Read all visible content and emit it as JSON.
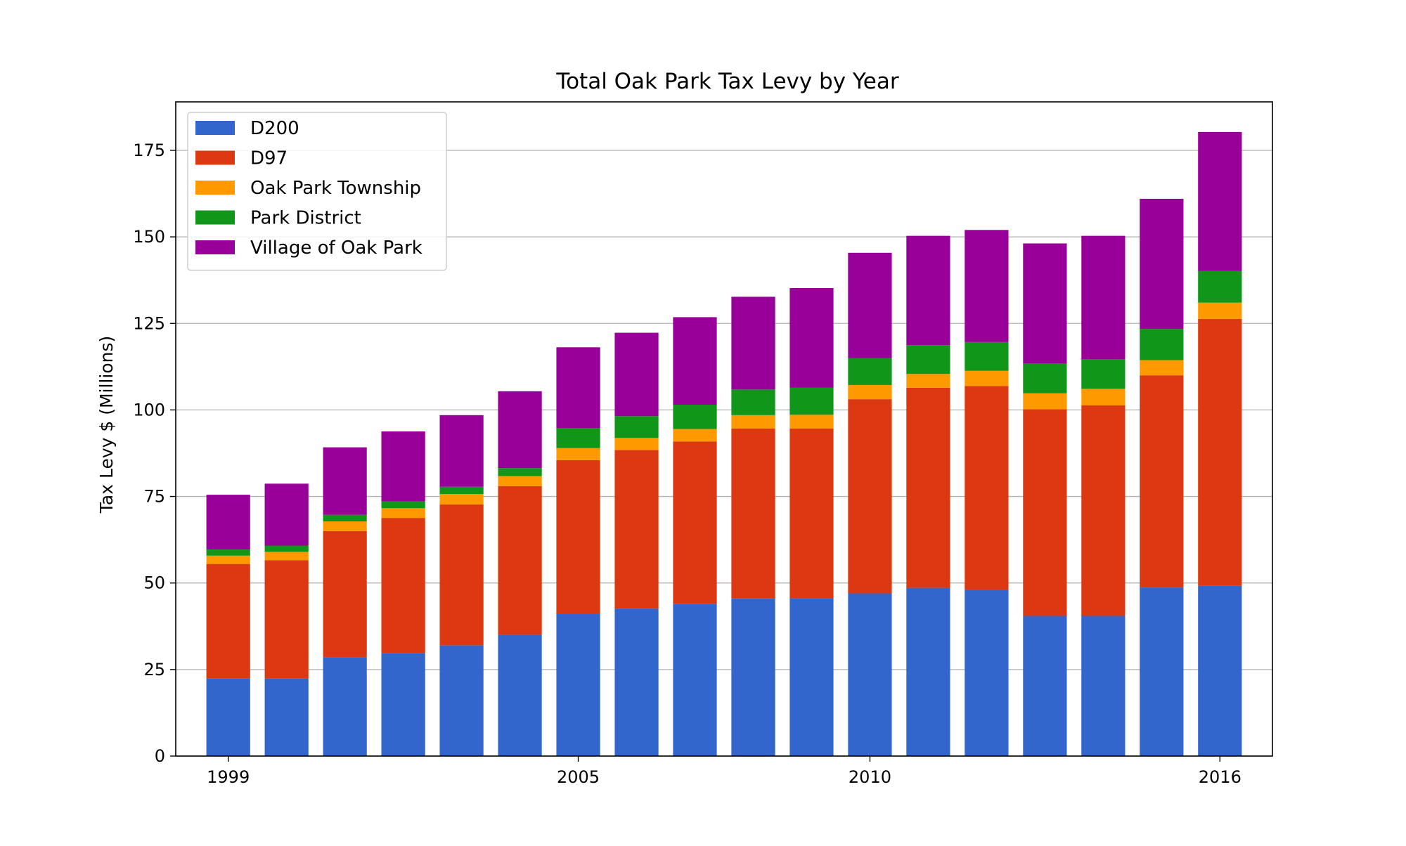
{
  "chart_data": {
    "type": "bar",
    "stacked": true,
    "title": "Total Oak Park Tax Levy by Year",
    "xlabel": "",
    "ylabel": "Tax Levy $ (Millions)",
    "ylim": [
      0,
      189
    ],
    "xlim": [
      1998.1,
      2016.9
    ],
    "grid": "horizontal",
    "legend_position": "top-left",
    "categories": [
      1999,
      2000,
      2001,
      2002,
      2003,
      2004,
      2005,
      2006,
      2007,
      2008,
      2009,
      2010,
      2011,
      2012,
      2013,
      2014,
      2015,
      2016
    ],
    "x_ticks": [
      1999,
      2005,
      2010,
      2016
    ],
    "x_tick_labels": [
      "1999",
      "2005",
      "2010",
      "2016"
    ],
    "y_ticks": [
      0,
      25,
      50,
      75,
      100,
      125,
      150,
      175
    ],
    "y_tick_labels": [
      "0",
      "25",
      "50",
      "75",
      "100",
      "125",
      "150",
      "175"
    ],
    "series": [
      {
        "name": "D200",
        "color": "#3366cc",
        "values": [
          22.5,
          22.4,
          28.6,
          29.8,
          32.0,
          35.0,
          41.2,
          42.6,
          44.0,
          45.5,
          45.6,
          47.0,
          48.6,
          48.0,
          40.5,
          40.5,
          48.7,
          49.2
        ]
      },
      {
        "name": "D97",
        "color": "#dc3912",
        "values": [
          33.0,
          34.2,
          36.4,
          39.0,
          40.7,
          43.0,
          44.3,
          45.8,
          46.9,
          49.1,
          49.0,
          56.1,
          57.8,
          58.9,
          59.7,
          60.8,
          61.3,
          77.1
        ]
      },
      {
        "name": "Oak Park Township",
        "color": "#ff9900",
        "values": [
          2.4,
          2.4,
          2.8,
          2.8,
          3.0,
          2.9,
          3.5,
          3.5,
          3.6,
          3.9,
          4.0,
          4.1,
          4.0,
          4.4,
          4.6,
          4.8,
          4.4,
          4.7
        ]
      },
      {
        "name": "Park District",
        "color": "#109618",
        "values": [
          1.8,
          1.8,
          1.9,
          2.0,
          2.1,
          2.3,
          5.8,
          6.3,
          7.0,
          7.4,
          7.8,
          7.8,
          8.3,
          8.3,
          8.6,
          8.6,
          9.0,
          9.1
        ]
      },
      {
        "name": "Village of Oak Park",
        "color": "#990099",
        "values": [
          15.8,
          17.9,
          19.5,
          20.2,
          20.7,
          22.2,
          23.3,
          24.1,
          25.3,
          26.8,
          28.8,
          30.4,
          31.6,
          32.4,
          34.7,
          35.6,
          37.6,
          40.2
        ]
      }
    ]
  }
}
